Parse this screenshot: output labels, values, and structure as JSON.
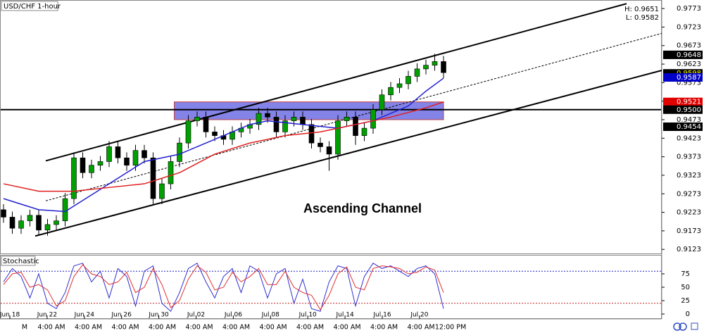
{
  "chart_data": {
    "type": "candlestick",
    "title": "USD/CHF 1-hour",
    "high_label": "H: 0.9651",
    "low_label": "L: 0.9582",
    "annotation": "Ascending Channel",
    "up_color": "#00a000",
    "down_color": "#000000",
    "ylim": [
      0.9112,
      0.9796
    ],
    "yticks": [
      0.9773,
      0.9723,
      0.9673,
      0.9623,
      0.9573,
      0.9523,
      0.9473,
      0.9423,
      0.9373,
      0.9323,
      0.9273,
      0.9223,
      0.9173,
      0.9123
    ],
    "open": [
      0.923,
      0.921,
      0.918,
      0.92,
      0.9215,
      0.9175,
      0.919,
      0.92,
      0.926,
      0.937,
      0.933,
      0.935,
      0.936,
      0.94,
      0.937,
      0.935,
      0.939,
      0.937,
      0.926,
      0.93,
      0.936,
      0.941,
      0.947,
      0.948,
      0.944,
      0.943,
      0.942,
      0.944,
      0.945,
      0.946,
      0.949,
      0.948,
      0.944,
      0.947,
      0.948,
      0.946,
      0.941,
      0.94,
      0.938,
      0.947,
      0.948,
      0.943,
      0.945,
      0.95,
      0.954,
      0.956,
      0.957,
      0.959,
      0.961,
      0.962,
      0.963
    ],
    "high": [
      0.9245,
      0.9225,
      0.9215,
      0.923,
      0.923,
      0.9205,
      0.9215,
      0.9275,
      0.9385,
      0.9385,
      0.9365,
      0.9375,
      0.9415,
      0.9415,
      0.9385,
      0.9405,
      0.9405,
      0.9385,
      0.9315,
      0.9375,
      0.9425,
      0.9485,
      0.9495,
      0.9495,
      0.9455,
      0.9445,
      0.9455,
      0.9465,
      0.9475,
      0.9505,
      0.9505,
      0.9495,
      0.9485,
      0.9495,
      0.9495,
      0.9475,
      0.9425,
      0.9415,
      0.9485,
      0.9495,
      0.9495,
      0.9465,
      0.9515,
      0.9555,
      0.9575,
      0.9585,
      0.9605,
      0.9625,
      0.9635,
      0.9651,
      0.9645
    ],
    "low": [
      0.9195,
      0.9165,
      0.9165,
      0.9185,
      0.916,
      0.916,
      0.9175,
      0.9185,
      0.9245,
      0.9315,
      0.9315,
      0.9335,
      0.9345,
      0.9355,
      0.9335,
      0.9335,
      0.9355,
      0.9245,
      0.9245,
      0.9285,
      0.9345,
      0.9395,
      0.9455,
      0.9425,
      0.9415,
      0.9405,
      0.9405,
      0.9425,
      0.9435,
      0.9445,
      0.9465,
      0.9425,
      0.9425,
      0.9455,
      0.9445,
      0.9395,
      0.9385,
      0.9335,
      0.9365,
      0.9455,
      0.9405,
      0.9415,
      0.9435,
      0.9485,
      0.9525,
      0.9545,
      0.9555,
      0.9575,
      0.9595,
      0.9605,
      0.9585
    ],
    "close": [
      0.921,
      0.918,
      0.92,
      0.9215,
      0.9175,
      0.919,
      0.92,
      0.926,
      0.937,
      0.933,
      0.935,
      0.936,
      0.94,
      0.937,
      0.935,
      0.939,
      0.937,
      0.926,
      0.93,
      0.936,
      0.941,
      0.947,
      0.948,
      0.944,
      0.943,
      0.942,
      0.944,
      0.945,
      0.946,
      0.949,
      0.948,
      0.944,
      0.947,
      0.948,
      0.946,
      0.941,
      0.94,
      0.938,
      0.947,
      0.948,
      0.943,
      0.945,
      0.95,
      0.954,
      0.956,
      0.957,
      0.959,
      0.961,
      0.962,
      0.963,
      0.96
    ],
    "series": [
      {
        "color": "#2020d0",
        "x": [
          0,
          4,
          7,
          10,
          14,
          16,
          20,
          24,
          28,
          30,
          34,
          38,
          42,
          46,
          48,
          50
        ],
        "values": [
          0.926,
          0.923,
          0.9225,
          0.927,
          0.933,
          0.936,
          0.938,
          0.942,
          0.946,
          0.947,
          0.946,
          0.945,
          0.947,
          0.951,
          0.955,
          0.9585
        ]
      },
      {
        "color": "#e02020",
        "x": [
          0,
          4,
          8,
          12,
          16,
          20,
          24,
          28,
          32,
          36,
          40,
          44,
          48,
          50
        ],
        "values": [
          0.93,
          0.928,
          0.928,
          0.929,
          0.93,
          0.933,
          0.938,
          0.941,
          0.943,
          0.944,
          0.946,
          0.948,
          0.9505,
          0.9521
        ]
      }
    ],
    "trend_lines": [
      {
        "x": [
          4.8,
          70.8
        ],
        "y": [
          0.9362,
          0.9786
        ],
        "dashed": false
      },
      {
        "x": [
          3.6,
          74.8
        ],
        "y": [
          0.9159,
          0.9606
        ],
        "dashed": false
      },
      {
        "x": [
          4.8,
          74.8
        ],
        "y": [
          0.9254,
          0.9706
        ],
        "dashed": true
      }
    ],
    "level": 0.95,
    "zone": {
      "x": [
        19.4,
        50
      ],
      "y": [
        0.9473,
        0.9521
      ],
      "color": "#5a5ae0"
    },
    "price_tags": [
      {
        "value": 0.9648,
        "color": "#000000",
        "text_color": "#ffffff"
      },
      {
        "value": 0.9598,
        "color": "#000000",
        "text_color": "#ffff00"
      },
      {
        "value": 0.9587,
        "color": "#0000c8",
        "text_color": "#ffffff"
      },
      {
        "value": 0.9521,
        "color": "#e00000",
        "text_color": "#ffffff"
      },
      {
        "value": 0.95,
        "label": "0.9500",
        "color": "#000000",
        "text_color": "#ffffff"
      },
      {
        "value": 0.9454,
        "color": "#000000",
        "text_color": "#ffffff"
      }
    ],
    "dates": [
      "Jun 18",
      "Jun 22",
      "Jun 24",
      "Jun 26",
      "Jun 30",
      "Jul 02",
      "Jul 06",
      "Jul 08",
      "Jul 10",
      "Jul 14",
      "Jul 16",
      "Jul 20"
    ],
    "times": [
      "M",
      "4:00 AM",
      "4:00 AM",
      "4:00 AM",
      "4:00 AM",
      "4:00 AM",
      "4:00 AM",
      "4:00 AM",
      "4:00 AM",
      "4:00 AM",
      "4:00 AM",
      "4:00 AM",
      "12:00 PM"
    ],
    "stochastic": {
      "title": "Stochastic",
      "ylim": [
        0,
        100
      ],
      "yticks": [
        75,
        50,
        25,
        0
      ],
      "levels": [
        80,
        20
      ],
      "level_colors": [
        "#2020c0",
        "#c02020"
      ],
      "series": [
        {
          "color": "#3030d0",
          "values": [
            60,
            85,
            70,
            30,
            75,
            20,
            10,
            40,
            90,
            95,
            60,
            80,
            30,
            85,
            70,
            15,
            80,
            90,
            20,
            5,
            40,
            85,
            95,
            60,
            30,
            70,
            85,
            40,
            90,
            80,
            30,
            75,
            85,
            20,
            65,
            10,
            5,
            60,
            90,
            85,
            15,
            70,
            95,
            85,
            90,
            80,
            70,
            85,
            90,
            75,
            10
          ]
        },
        {
          "color": "#e03030",
          "values": [
            55,
            75,
            78,
            50,
            55,
            45,
            15,
            25,
            70,
            92,
            75,
            70,
            55,
            60,
            78,
            40,
            50,
            85,
            55,
            12,
            25,
            65,
            90,
            78,
            45,
            50,
            78,
            60,
            70,
            85,
            55,
            55,
            80,
            50,
            40,
            35,
            8,
            35,
            75,
            88,
            50,
            45,
            85,
            90,
            88,
            85,
            75,
            78,
            88,
            82,
            40
          ]
        }
      ]
    }
  }
}
